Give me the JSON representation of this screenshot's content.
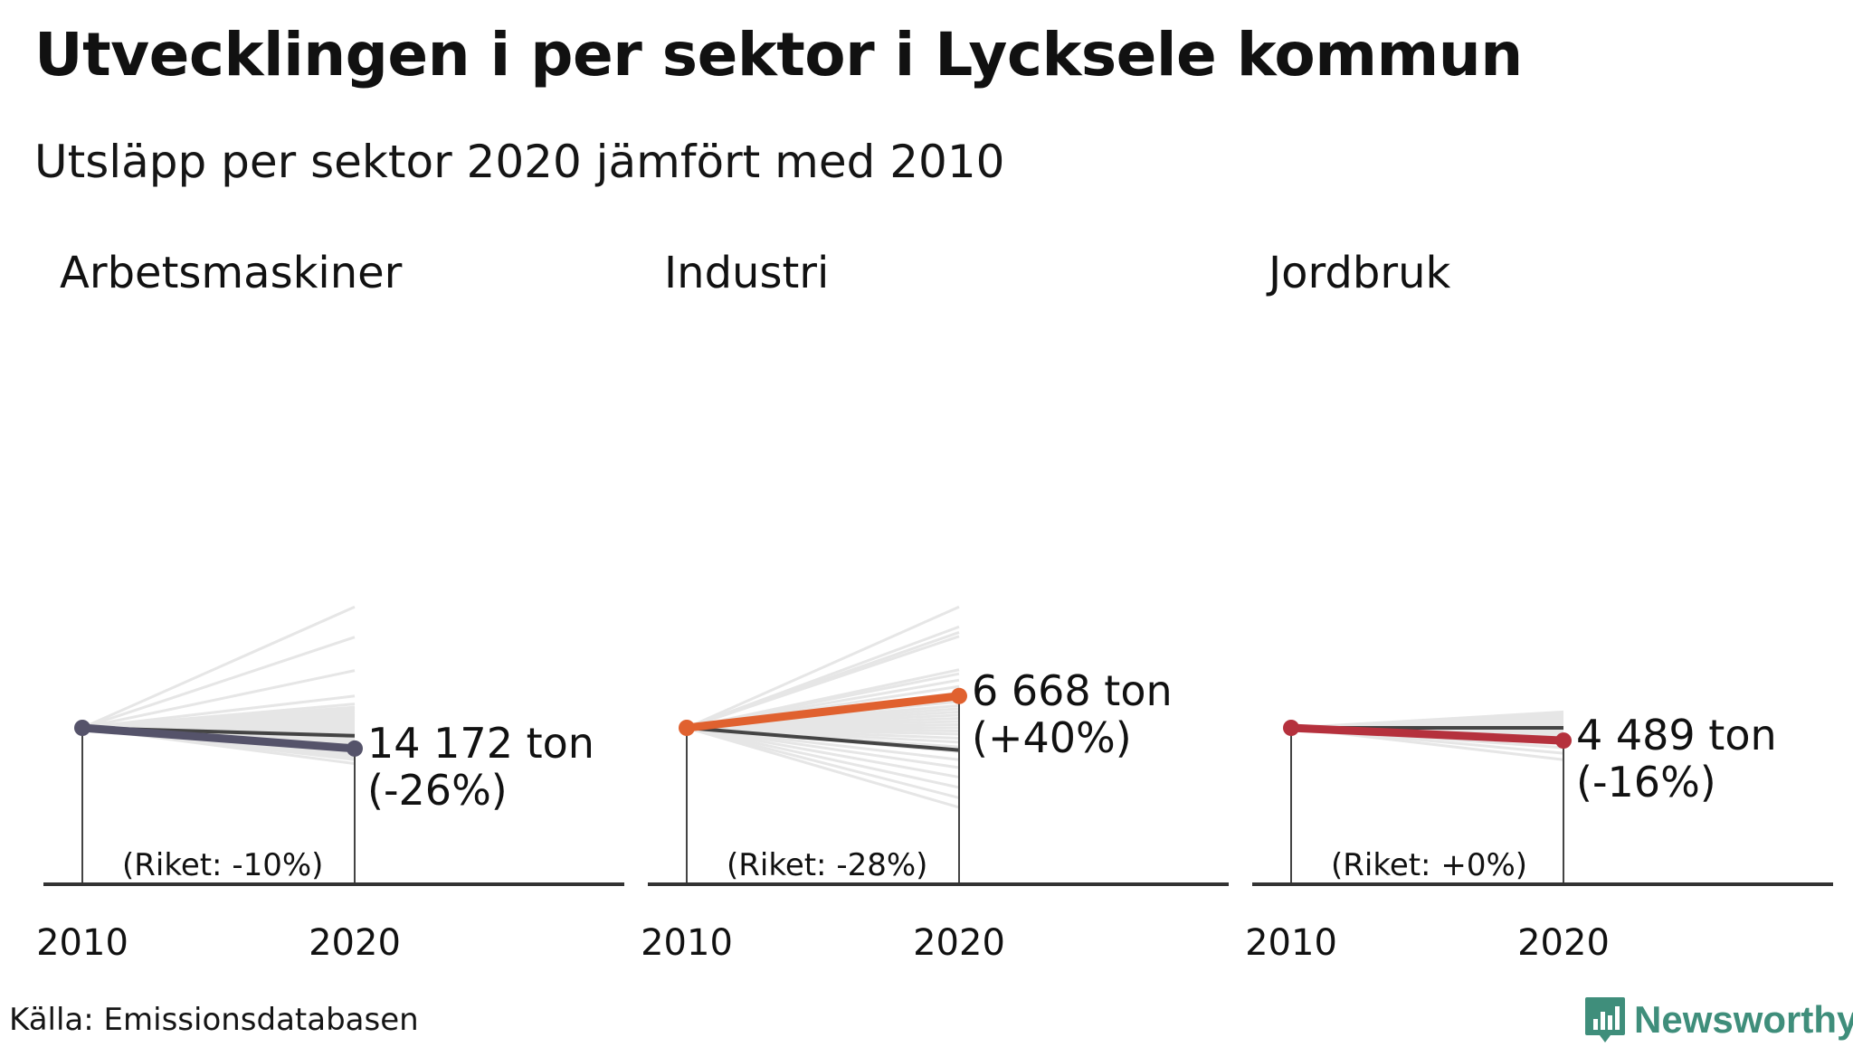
{
  "title": "Utvecklingen i per sektor i Lycksele kommun",
  "subtitle": "Utsläpp per sektor 2020 jämfört med 2010",
  "source": "Källa: Emissionsdatabasen",
  "brand": {
    "name": "Newsworthy",
    "icon": "newsworthy-logo-icon",
    "color": "#3f8e7b"
  },
  "colors": {
    "background_lines": "#e6e6e6",
    "national_line": "#444444",
    "axis": "#333333"
  },
  "chart_data": {
    "type": "line",
    "description_units": "index relative to 2010 (%)",
    "x": [
      "2010",
      "2020"
    ],
    "ylim": [
      -100,
      160
    ],
    "panels": [
      {
        "name": "Arbetsmaskiner",
        "color": "#55536a",
        "highlight": {
          "value_2020_label": "14 172 ton",
          "change_label": "(-26%)",
          "change_pct": -26
        },
        "national": {
          "label": "(Riket: -10%)",
          "change_pct": -10
        },
        "other_municipalities_pct": [
          152,
          114,
          72,
          40,
          30,
          26,
          23,
          20,
          17,
          15,
          13,
          11,
          9,
          7,
          5,
          3,
          1,
          -2,
          -5,
          -8,
          -12,
          -15,
          -18,
          -20,
          -23,
          -28,
          -31,
          -34,
          -37,
          -40,
          -45
        ]
      },
      {
        "name": "Industri",
        "color": "#e0612f",
        "highlight": {
          "value_2020_label": "6 668 ton",
          "change_label": "(+40%)",
          "change_pct": 40
        },
        "national": {
          "label": "(Riket: -28%)",
          "change_pct": -28
        },
        "other_municipalities_pct": [
          152,
          127,
          120,
          115,
          73,
          68,
          60,
          52,
          44,
          38,
          33,
          28,
          24,
          20,
          16,
          12,
          8,
          4,
          0,
          -4,
          -8,
          -13,
          -18,
          -24,
          -30,
          -40,
          -50,
          -62,
          -75,
          -88,
          -100
        ]
      },
      {
        "name": "Jordbruk",
        "color": "#b5313d",
        "highlight": {
          "value_2020_label": "4 489 ton",
          "change_label": "(-16%)",
          "change_pct": -16
        },
        "national": {
          "label": "(Riket: +0%)",
          "change_pct": 0
        },
        "other_municipalities_pct": [
          20,
          17,
          14,
          12,
          10,
          8,
          6,
          4,
          2,
          0,
          -2,
          -4,
          -6,
          -8,
          -10,
          -12,
          -14,
          -17,
          -20,
          -25,
          -32,
          -40
        ]
      }
    ]
  }
}
